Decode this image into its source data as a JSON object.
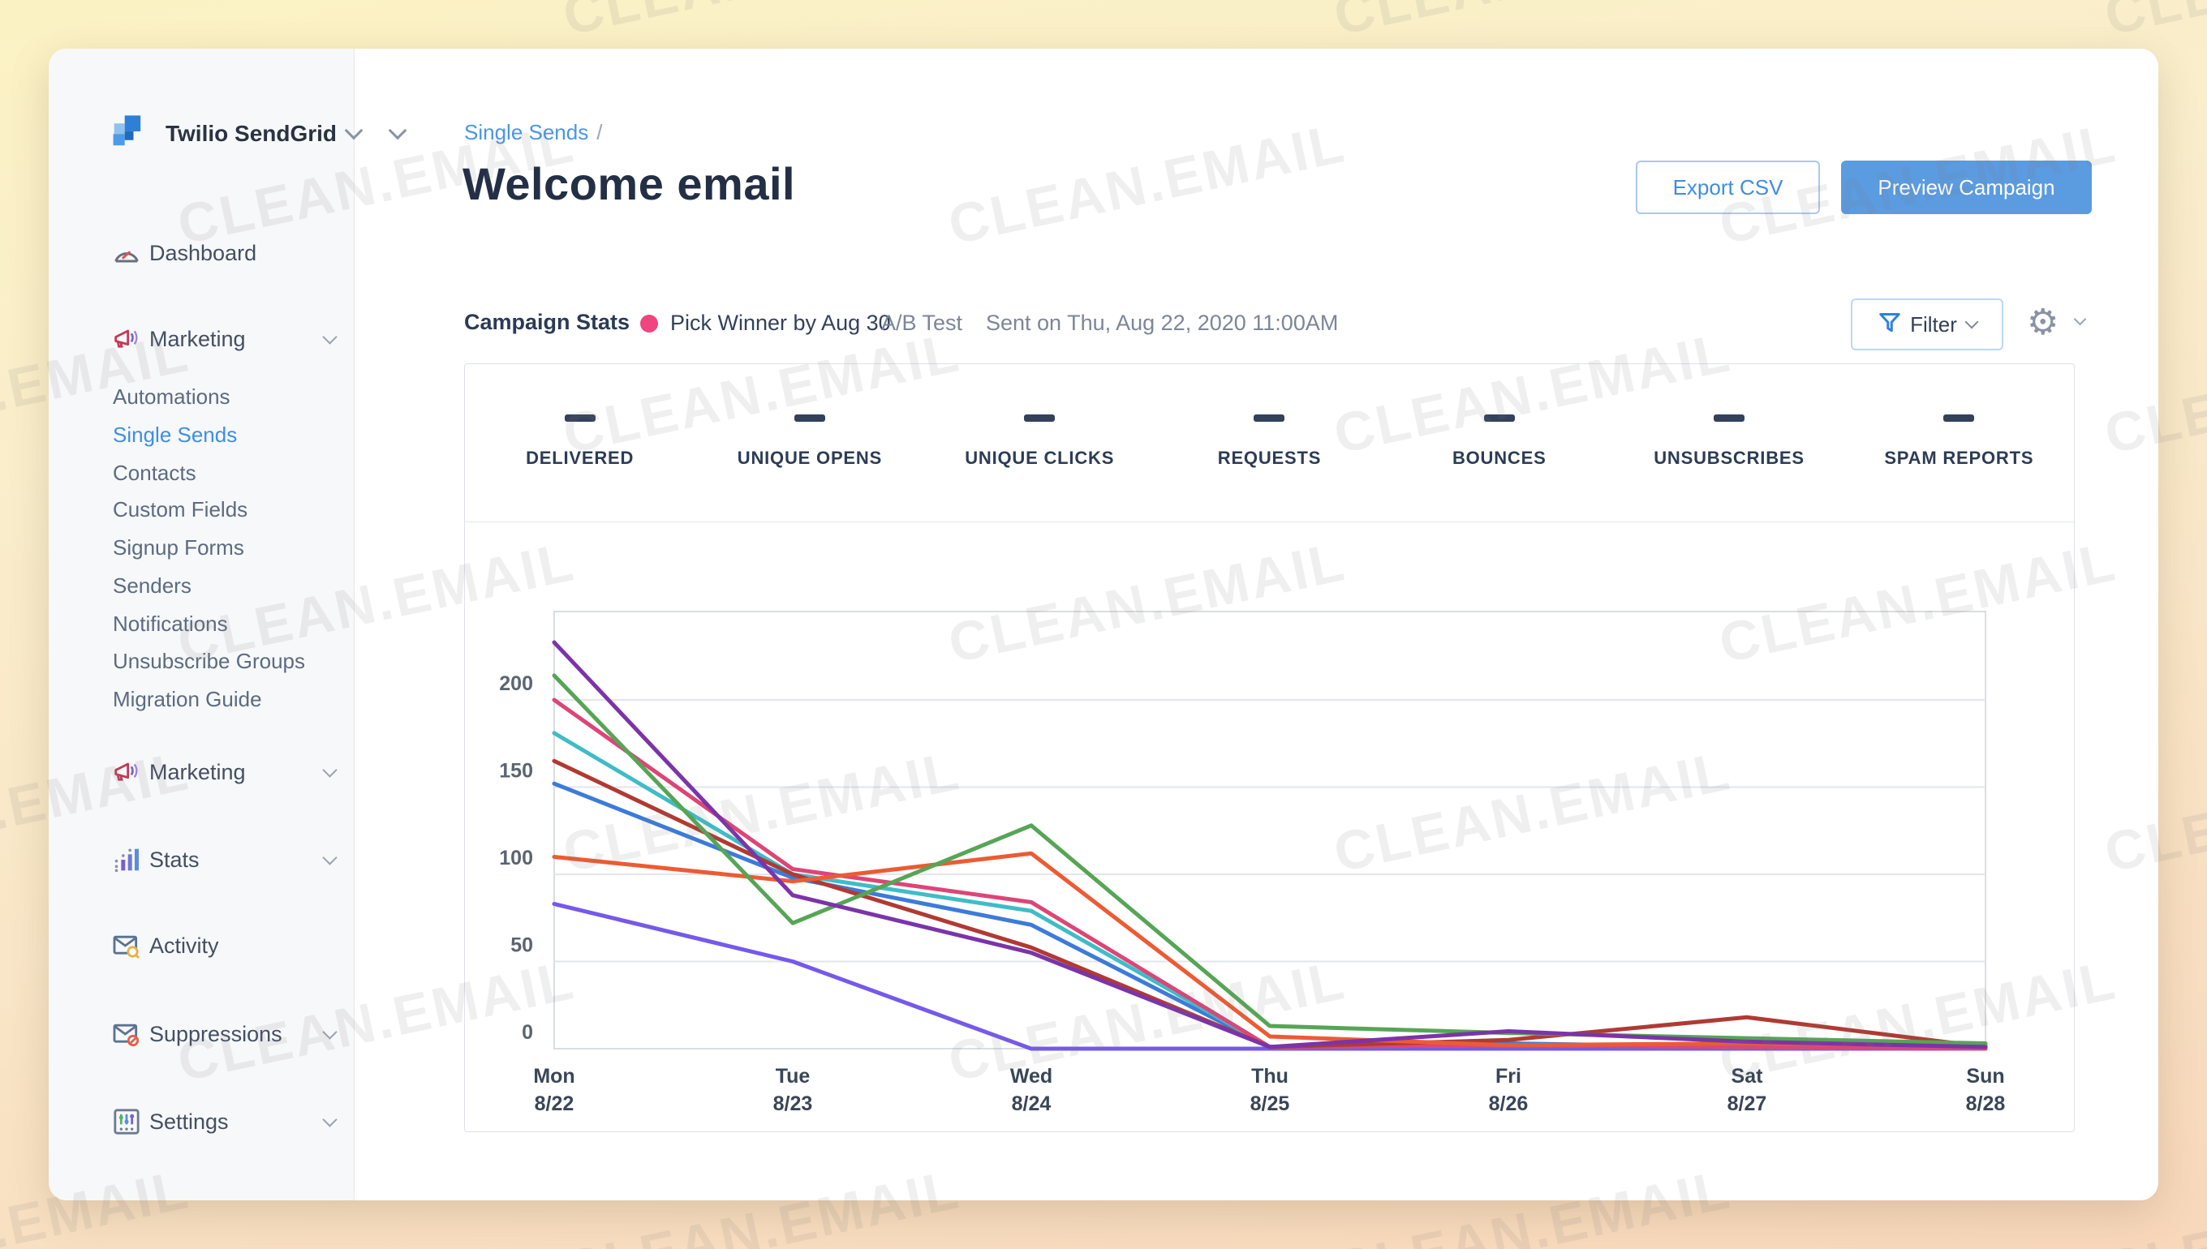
{
  "watermark": {
    "text": "CLEAN.EMAIL"
  },
  "sidebar": {
    "brand": {
      "name": "Twilio SendGrid"
    },
    "items": [
      {
        "label": "Dashboard",
        "type": "top",
        "icon": "dashboard-icon",
        "chevron": false,
        "active": false
      },
      {
        "label": "Marketing",
        "type": "top",
        "icon": "megaphone-icon",
        "chevron": true,
        "active": false
      },
      {
        "label": "Automations",
        "type": "sub",
        "chevron": false,
        "active": false
      },
      {
        "label": "Single Sends",
        "type": "sub",
        "chevron": false,
        "active": true
      },
      {
        "label": "Contacts",
        "type": "sub",
        "chevron": false,
        "active": false
      },
      {
        "label": "Custom Fields",
        "type": "sub",
        "chevron": false,
        "active": false
      },
      {
        "label": "Signup Forms",
        "type": "sub",
        "chevron": false,
        "active": false
      },
      {
        "label": "Senders",
        "type": "sub",
        "chevron": false,
        "active": false
      },
      {
        "label": "Notifications",
        "type": "sub",
        "chevron": false,
        "active": false
      },
      {
        "label": "Unsubscribe Groups",
        "type": "sub",
        "chevron": false,
        "active": false
      },
      {
        "label": "Migration Guide",
        "type": "sub",
        "chevron": false,
        "active": false
      },
      {
        "label": "Marketing",
        "type": "top",
        "icon": "megaphone-icon",
        "chevron": true,
        "active": false
      },
      {
        "label": "Stats",
        "type": "top",
        "icon": "stats-icon",
        "chevron": true,
        "active": false
      },
      {
        "label": "Activity",
        "type": "top",
        "icon": "activity-icon",
        "chevron": false,
        "active": false
      },
      {
        "label": "Suppressions",
        "type": "top",
        "icon": "suppressions-icon",
        "chevron": true,
        "active": false
      },
      {
        "label": "Settings",
        "type": "top",
        "icon": "settings-icon",
        "chevron": true,
        "active": false
      }
    ]
  },
  "header": {
    "breadcrumb": "Single Sends",
    "breadcrumb_separator": "/",
    "title": "Welcome email",
    "export_label": "Export CSV",
    "preview_label": "Preview Campaign"
  },
  "stats_bar": {
    "label": "Campaign Stats",
    "pick_winner": "Pick Winner by Aug 30",
    "pick_winner_dot_color": "#f0457e",
    "ab_test": "A/B Test",
    "sent_on": "Sent on Thu, Aug 22, 2020 11:00AM",
    "filter_label": "Filter",
    "gear_icon": "⚙"
  },
  "metrics": {
    "value_placeholder": "—",
    "labels": [
      "DELIVERED",
      "UNIQUE OPENS",
      "UNIQUE CLICKS",
      "REQUESTS",
      "BOUNCES",
      "UNSUBSCRIBES",
      "SPAM REPORTS"
    ]
  },
  "accent_colors": {
    "primary_blue": "#3e8ee2",
    "button_fill_blue": "#5b9be0",
    "active_link": "#3e8ee2"
  },
  "chart_data": {
    "type": "line",
    "title": "",
    "xlabel": "",
    "ylabel": "",
    "x_categories": [
      {
        "day": "Mon",
        "date": "8/22"
      },
      {
        "day": "Tue",
        "date": "8/23"
      },
      {
        "day": "Wed",
        "date": "8/24"
      },
      {
        "day": "Thu",
        "date": "8/25"
      },
      {
        "day": "Fri",
        "date": "8/26"
      },
      {
        "day": "Sat",
        "date": "8/27"
      },
      {
        "day": "Sun",
        "date": "8/28"
      }
    ],
    "y_ticks": [
      0,
      50,
      100,
      150,
      200
    ],
    "ylim": [
      0,
      250
    ],
    "grid": "horizontal",
    "legend_position": "none",
    "series": [
      {
        "name": "violet-series",
        "color": "#7659ea",
        "values": [
          83,
          50,
          0,
          0,
          0,
          0,
          0
        ]
      },
      {
        "name": "blue-series",
        "color": "#3c7bd9",
        "values": [
          152,
          98,
          71,
          1,
          3,
          1,
          0
        ]
      },
      {
        "name": "cyan-series",
        "color": "#3fbcc8",
        "values": [
          181,
          100,
          79,
          1,
          2,
          1,
          0
        ]
      },
      {
        "name": "pink-series",
        "color": "#dd4577",
        "values": [
          200,
          103,
          84,
          1,
          2,
          1,
          0
        ]
      },
      {
        "name": "dark-red-series",
        "color": "#b03a33",
        "values": [
          165,
          100,
          58,
          1,
          5,
          18,
          1
        ]
      },
      {
        "name": "orange-series",
        "color": "#ec5b34",
        "values": [
          110,
          96,
          112,
          7,
          2,
          3,
          2
        ]
      },
      {
        "name": "green-series",
        "color": "#56a556",
        "values": [
          214,
          72,
          128,
          13,
          9,
          6,
          3
        ]
      },
      {
        "name": "purple-series",
        "color": "#7b34a8",
        "values": [
          233,
          88,
          55,
          1,
          10,
          4,
          1
        ]
      }
    ]
  }
}
